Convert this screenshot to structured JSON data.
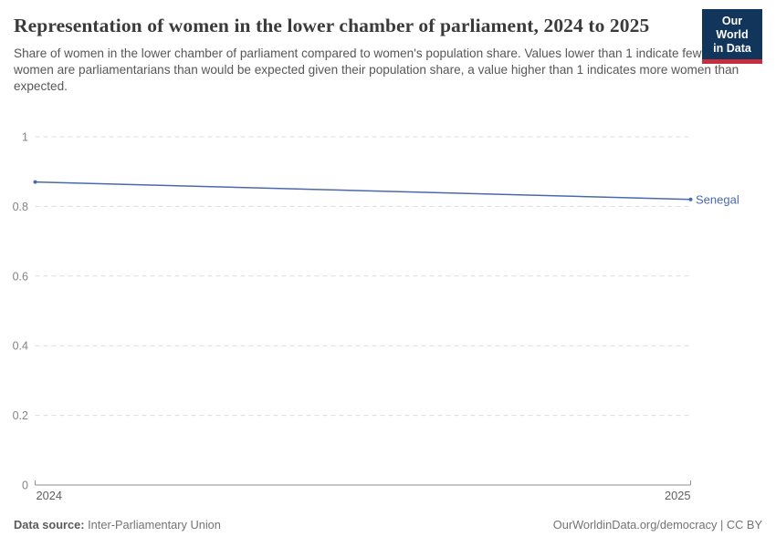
{
  "header": {
    "title": "Representation of women in the lower chamber of parliament, 2024 to 2025",
    "subtitle": "Share of women in the lower chamber of parliament compared to women's population share. Values lower than 1 indicate fewer women are parliamentarians than would be expected given their population share, a value higher than 1 indicates more women than expected.",
    "logo": {
      "line1": "Our World",
      "line2": "in Data"
    }
  },
  "chart_data": {
    "type": "line",
    "x": [
      2024,
      2025
    ],
    "xticklabels": [
      "2024",
      "2025"
    ],
    "series": [
      {
        "name": "Senegal",
        "values": [
          0.87,
          0.82
        ],
        "color": "#4a69ad"
      }
    ],
    "ylim": [
      0,
      1
    ],
    "yticks": [
      0,
      0.2,
      0.4,
      0.6,
      0.8,
      1
    ],
    "xlabel": "",
    "ylabel": "",
    "grid": "horizontal-dashed",
    "legend": "line-end-label"
  },
  "footer": {
    "datasource_label": "Data source:",
    "datasource_value": "Inter-Parliamentary Union",
    "credit": "OurWorldinData.org/democracy | CC BY"
  },
  "colors": {
    "series_blue": "#4a69ad",
    "logo_navy": "#12355c",
    "logo_red": "#c52e3d",
    "gridline": "#dcdcdc",
    "axis": "#8f8f8f",
    "title_text": "#3b3b3b",
    "subtitle_text": "#575757"
  }
}
